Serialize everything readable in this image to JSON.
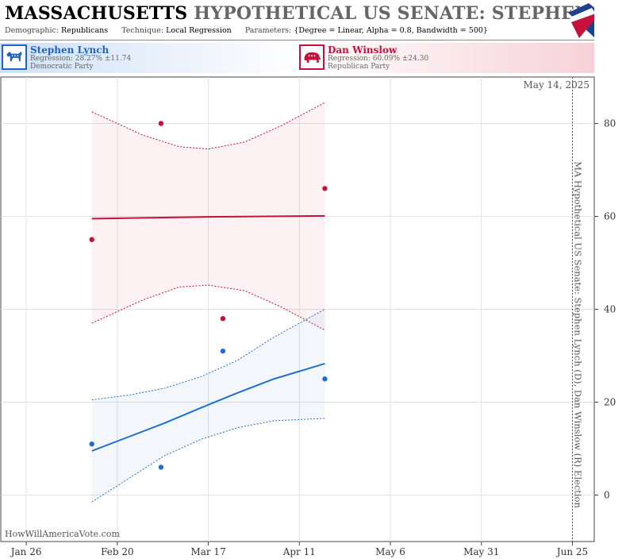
{
  "header": {
    "title_state": "MASSACHUSETTS",
    "title_rest": "HYPOTHETICAL US SENATE: STEPHEN LYNCH",
    "demographic_label": "Demographic:",
    "demographic_value": "Republicans",
    "technique_label": "Technique:",
    "technique_value": "Local Regression",
    "parameters_label": "Parameters:",
    "parameters_value": "{Degree = Linear, Alpha = 0.8, Bandwidth = 500}"
  },
  "candidates": {
    "dem": {
      "name": "Stephen Lynch",
      "regression": "Regression: 28.27% ±11.74",
      "party": "Democratic Party",
      "icon": "donkey-icon",
      "color": "#1f6fd1"
    },
    "rep": {
      "name": "Dan Winslow",
      "regression": "Regression: 60.09% ±24.30",
      "party": "Republican Party",
      "icon": "elephant-icon",
      "color": "#c4123a"
    }
  },
  "chart_data": {
    "type": "scatter",
    "date_label": "May 14, 2025",
    "side_label": "MA Hypothetical US Senate: Stephen Lynch (D), Dan Winslow (R) Election",
    "watermark": "HowWillAmericaVote.com",
    "x_range": [
      "2025-01-19",
      "2025-07-01"
    ],
    "ylim": [
      -10,
      90
    ],
    "x_ticks": [
      {
        "label": "Jan 26",
        "date": "2025-01-26"
      },
      {
        "label": "Feb 20",
        "date": "2025-02-20"
      },
      {
        "label": "Mar 17",
        "date": "2025-03-17"
      },
      {
        "label": "Apr 11",
        "date": "2025-04-11"
      },
      {
        "label": "May 6",
        "date": "2025-05-06"
      },
      {
        "label": "May 31",
        "date": "2025-05-31"
      },
      {
        "label": "Jun 25",
        "date": "2025-06-25"
      }
    ],
    "y_ticks": [
      0,
      20,
      40,
      60,
      80
    ],
    "marker_date": "2025-06-25",
    "series": [
      {
        "name": "Stephen Lynch",
        "color": "#1f6fd1",
        "points": [
          {
            "x": "2025-02-13",
            "y": 11
          },
          {
            "x": "2025-03-04",
            "y": 6
          },
          {
            "x": "2025-03-21",
            "y": 31
          },
          {
            "x": "2025-04-18",
            "y": 25
          }
        ],
        "fit": [
          {
            "x": "2025-02-13",
            "y": 9.5
          },
          {
            "x": "2025-02-23",
            "y": 12.5
          },
          {
            "x": "2025-03-05",
            "y": 15.5
          },
          {
            "x": "2025-03-15",
            "y": 18.8
          },
          {
            "x": "2025-03-25",
            "y": 22.0
          },
          {
            "x": "2025-04-04",
            "y": 25.0
          },
          {
            "x": "2025-04-18",
            "y": 28.3
          }
        ],
        "upper": [
          {
            "x": "2025-02-13",
            "y": 20.5
          },
          {
            "x": "2025-02-23",
            "y": 21.5
          },
          {
            "x": "2025-03-05",
            "y": 23.0
          },
          {
            "x": "2025-03-15",
            "y": 25.5
          },
          {
            "x": "2025-03-25",
            "y": 29.0
          },
          {
            "x": "2025-04-04",
            "y": 34.0
          },
          {
            "x": "2025-04-18",
            "y": 40.0
          }
        ],
        "lower": [
          {
            "x": "2025-02-13",
            "y": -1.5
          },
          {
            "x": "2025-02-23",
            "y": 3.5
          },
          {
            "x": "2025-03-05",
            "y": 8.5
          },
          {
            "x": "2025-03-15",
            "y": 12.0
          },
          {
            "x": "2025-03-25",
            "y": 14.5
          },
          {
            "x": "2025-04-04",
            "y": 16.0
          },
          {
            "x": "2025-04-18",
            "y": 16.5
          }
        ]
      },
      {
        "name": "Dan Winslow",
        "color": "#c4123a",
        "points": [
          {
            "x": "2025-02-13",
            "y": 55
          },
          {
            "x": "2025-03-04",
            "y": 80
          },
          {
            "x": "2025-03-21",
            "y": 38
          },
          {
            "x": "2025-04-18",
            "y": 66
          }
        ],
        "fit": [
          {
            "x": "2025-02-13",
            "y": 59.5
          },
          {
            "x": "2025-03-01",
            "y": 59.7
          },
          {
            "x": "2025-03-17",
            "y": 59.9
          },
          {
            "x": "2025-04-02",
            "y": 60.0
          },
          {
            "x": "2025-04-18",
            "y": 60.1
          }
        ],
        "upper": [
          {
            "x": "2025-02-13",
            "y": 82.5
          },
          {
            "x": "2025-02-27",
            "y": 77.5
          },
          {
            "x": "2025-03-09",
            "y": 75.0
          },
          {
            "x": "2025-03-17",
            "y": 74.5
          },
          {
            "x": "2025-03-27",
            "y": 76.0
          },
          {
            "x": "2025-04-06",
            "y": 79.5
          },
          {
            "x": "2025-04-18",
            "y": 84.5
          }
        ],
        "lower": [
          {
            "x": "2025-02-13",
            "y": 37.0
          },
          {
            "x": "2025-02-27",
            "y": 42.0
          },
          {
            "x": "2025-03-09",
            "y": 44.8
          },
          {
            "x": "2025-03-17",
            "y": 45.2
          },
          {
            "x": "2025-03-27",
            "y": 44.0
          },
          {
            "x": "2025-04-06",
            "y": 40.5
          },
          {
            "x": "2025-04-18",
            "y": 35.5
          }
        ]
      }
    ]
  }
}
